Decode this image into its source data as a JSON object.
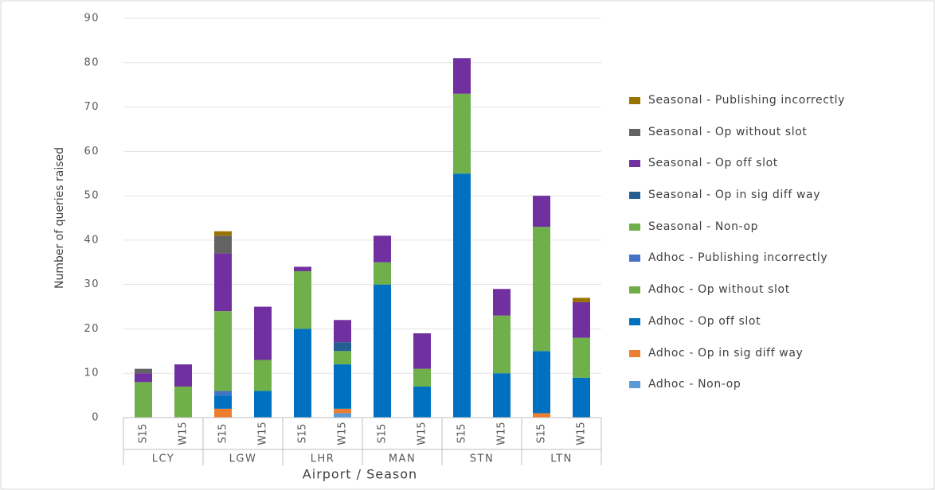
{
  "chart_data": {
    "type": "stacked-bar",
    "y_label": "Number of queries raised",
    "x_label": "Airport / Season",
    "categories": [
      "S15",
      "W15",
      "S15",
      "W15",
      "S15",
      "W15",
      "S15",
      "W15",
      "S15",
      "W15",
      "S15",
      "W15"
    ],
    "groups": [
      "LCY",
      "LGW",
      "LHR",
      "MAN",
      "STN",
      "LTN"
    ],
    "ylim": [
      0,
      90
    ],
    "yticks": [
      0,
      10,
      20,
      30,
      40,
      50,
      60,
      70,
      80,
      90
    ],
    "grid": true,
    "series": [
      {
        "name": "Adhoc - Non-op",
        "color": "#5b9bd5",
        "values": [
          0,
          0,
          0,
          0,
          0,
          1,
          0,
          0,
          0,
          0,
          0,
          0
        ]
      },
      {
        "name": "Adhoc - Op in sig diff way",
        "color": "#ed7d31",
        "values": [
          0,
          0,
          2,
          0,
          0,
          1,
          0,
          0,
          0,
          0,
          1,
          0
        ]
      },
      {
        "name": "Adhoc - Op off slot",
        "color": "#0070c0",
        "values": [
          0,
          0,
          3,
          6,
          20,
          10,
          30,
          7,
          55,
          10,
          14,
          9
        ]
      },
      {
        "name": "Adhoc - Op without slot",
        "color": "#70ad47",
        "values": [
          0,
          0,
          0,
          0,
          0,
          0,
          0,
          0,
          0,
          0,
          0,
          0
        ]
      },
      {
        "name": "Adhoc - Publishing incorrectly",
        "color": "#4472c4",
        "values": [
          0,
          0,
          1,
          0,
          0,
          0,
          0,
          0,
          0,
          0,
          0,
          0
        ]
      },
      {
        "name": "Seasonal - Non-op",
        "color": "#6fb04a",
        "values": [
          8,
          7,
          18,
          7,
          13,
          3,
          5,
          4,
          18,
          13,
          28,
          9
        ]
      },
      {
        "name": "Seasonal - Op in sig diff way",
        "color": "#255e91",
        "values": [
          0,
          0,
          0,
          0,
          0,
          2,
          0,
          0,
          0,
          0,
          0,
          0
        ]
      },
      {
        "name": "Seasonal - Op off slot",
        "color": "#7030a0",
        "values": [
          2,
          5,
          13,
          12,
          1,
          5,
          6,
          8,
          8,
          6,
          7,
          8
        ]
      },
      {
        "name": "Seasonal - Op without slot",
        "color": "#636363",
        "values": [
          1,
          0,
          4,
          0,
          0,
          0,
          0,
          0,
          0,
          0,
          0,
          0
        ]
      },
      {
        "name": "Seasonal - Publishing incorrectly",
        "color": "#997300",
        "values": [
          0,
          0,
          1,
          0,
          0,
          0,
          0,
          0,
          0,
          0,
          0,
          1
        ]
      }
    ]
  }
}
